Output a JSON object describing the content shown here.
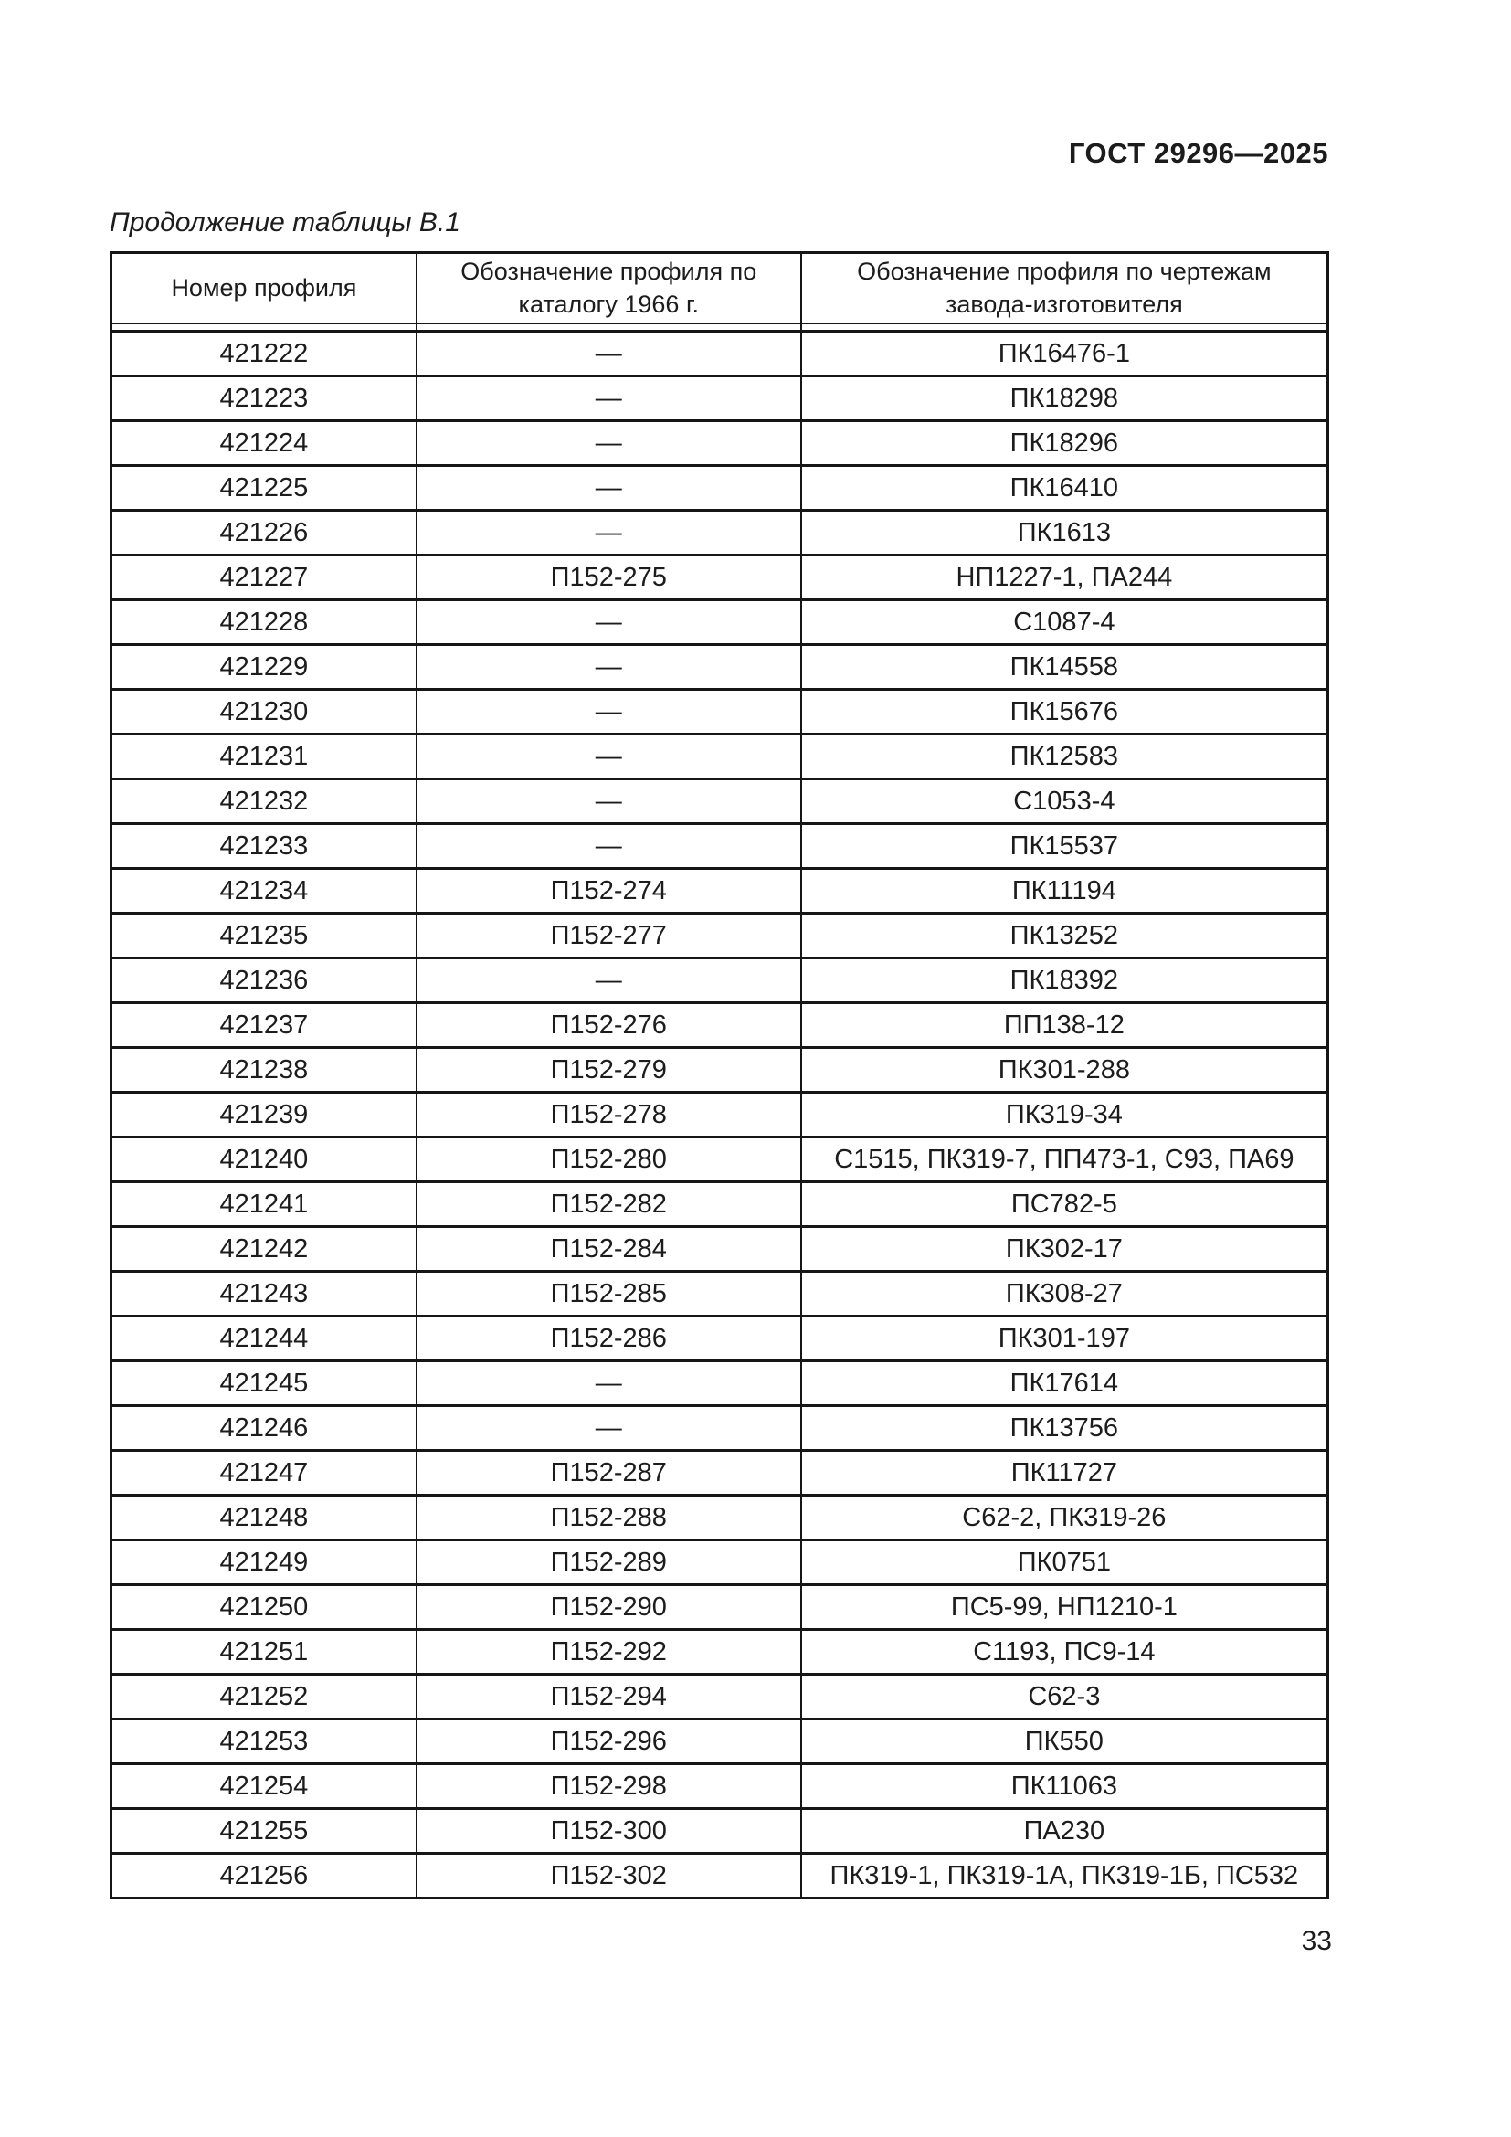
{
  "document": {
    "standard_number": "ГОСТ 29296—2025",
    "table_caption": "Продолжение таблицы В.1",
    "page_number": "33"
  },
  "table": {
    "columns": [
      "Номер профиля",
      "Обозначение профиля по каталогу 1966 г.",
      "Обозначение профиля по чертежам завода-изготовителя"
    ],
    "rows": [
      [
        "421222",
        "—",
        "ПК16476-1"
      ],
      [
        "421223",
        "—",
        "ПК18298"
      ],
      [
        "421224",
        "—",
        "ПК18296"
      ],
      [
        "421225",
        "—",
        "ПК16410"
      ],
      [
        "421226",
        "—",
        "ПК1613"
      ],
      [
        "421227",
        "П152-275",
        "НП1227-1, ПА244"
      ],
      [
        "421228",
        "—",
        "С1087-4"
      ],
      [
        "421229",
        "—",
        "ПК14558"
      ],
      [
        "421230",
        "—",
        "ПК15676"
      ],
      [
        "421231",
        "—",
        "ПК12583"
      ],
      [
        "421232",
        "—",
        "С1053-4"
      ],
      [
        "421233",
        "—",
        "ПК15537"
      ],
      [
        "421234",
        "П152-274",
        "ПК11194"
      ],
      [
        "421235",
        "П152-277",
        "ПК13252"
      ],
      [
        "421236",
        "—",
        "ПК18392"
      ],
      [
        "421237",
        "П152-276",
        "ПП138-12"
      ],
      [
        "421238",
        "П152-279",
        "ПК301-288"
      ],
      [
        "421239",
        "П152-278",
        "ПК319-34"
      ],
      [
        "421240",
        "П152-280",
        "С1515, ПК319-7, ПП473-1, С93, ПА69"
      ],
      [
        "421241",
        "П152-282",
        "ПС782-5"
      ],
      [
        "421242",
        "П152-284",
        "ПК302-17"
      ],
      [
        "421243",
        "П152-285",
        "ПК308-27"
      ],
      [
        "421244",
        "П152-286",
        "ПК301-197"
      ],
      [
        "421245",
        "—",
        "ПК17614"
      ],
      [
        "421246",
        "—",
        "ПК13756"
      ],
      [
        "421247",
        "П152-287",
        "ПК11727"
      ],
      [
        "421248",
        "П152-288",
        "С62-2, ПК319-26"
      ],
      [
        "421249",
        "П152-289",
        "ПК0751"
      ],
      [
        "421250",
        "П152-290",
        "ПС5-99, НП1210-1"
      ],
      [
        "421251",
        "П152-292",
        "С1193, ПС9-14"
      ],
      [
        "421252",
        "П152-294",
        "С62-3"
      ],
      [
        "421253",
        "П152-296",
        "ПК550"
      ],
      [
        "421254",
        "П152-298",
        "ПК11063"
      ],
      [
        "421255",
        "П152-300",
        "ПА230"
      ],
      [
        "421256",
        "П152-302",
        "ПК319-1, ПК319-1А, ПК319-1Б, ПС532"
      ]
    ]
  }
}
